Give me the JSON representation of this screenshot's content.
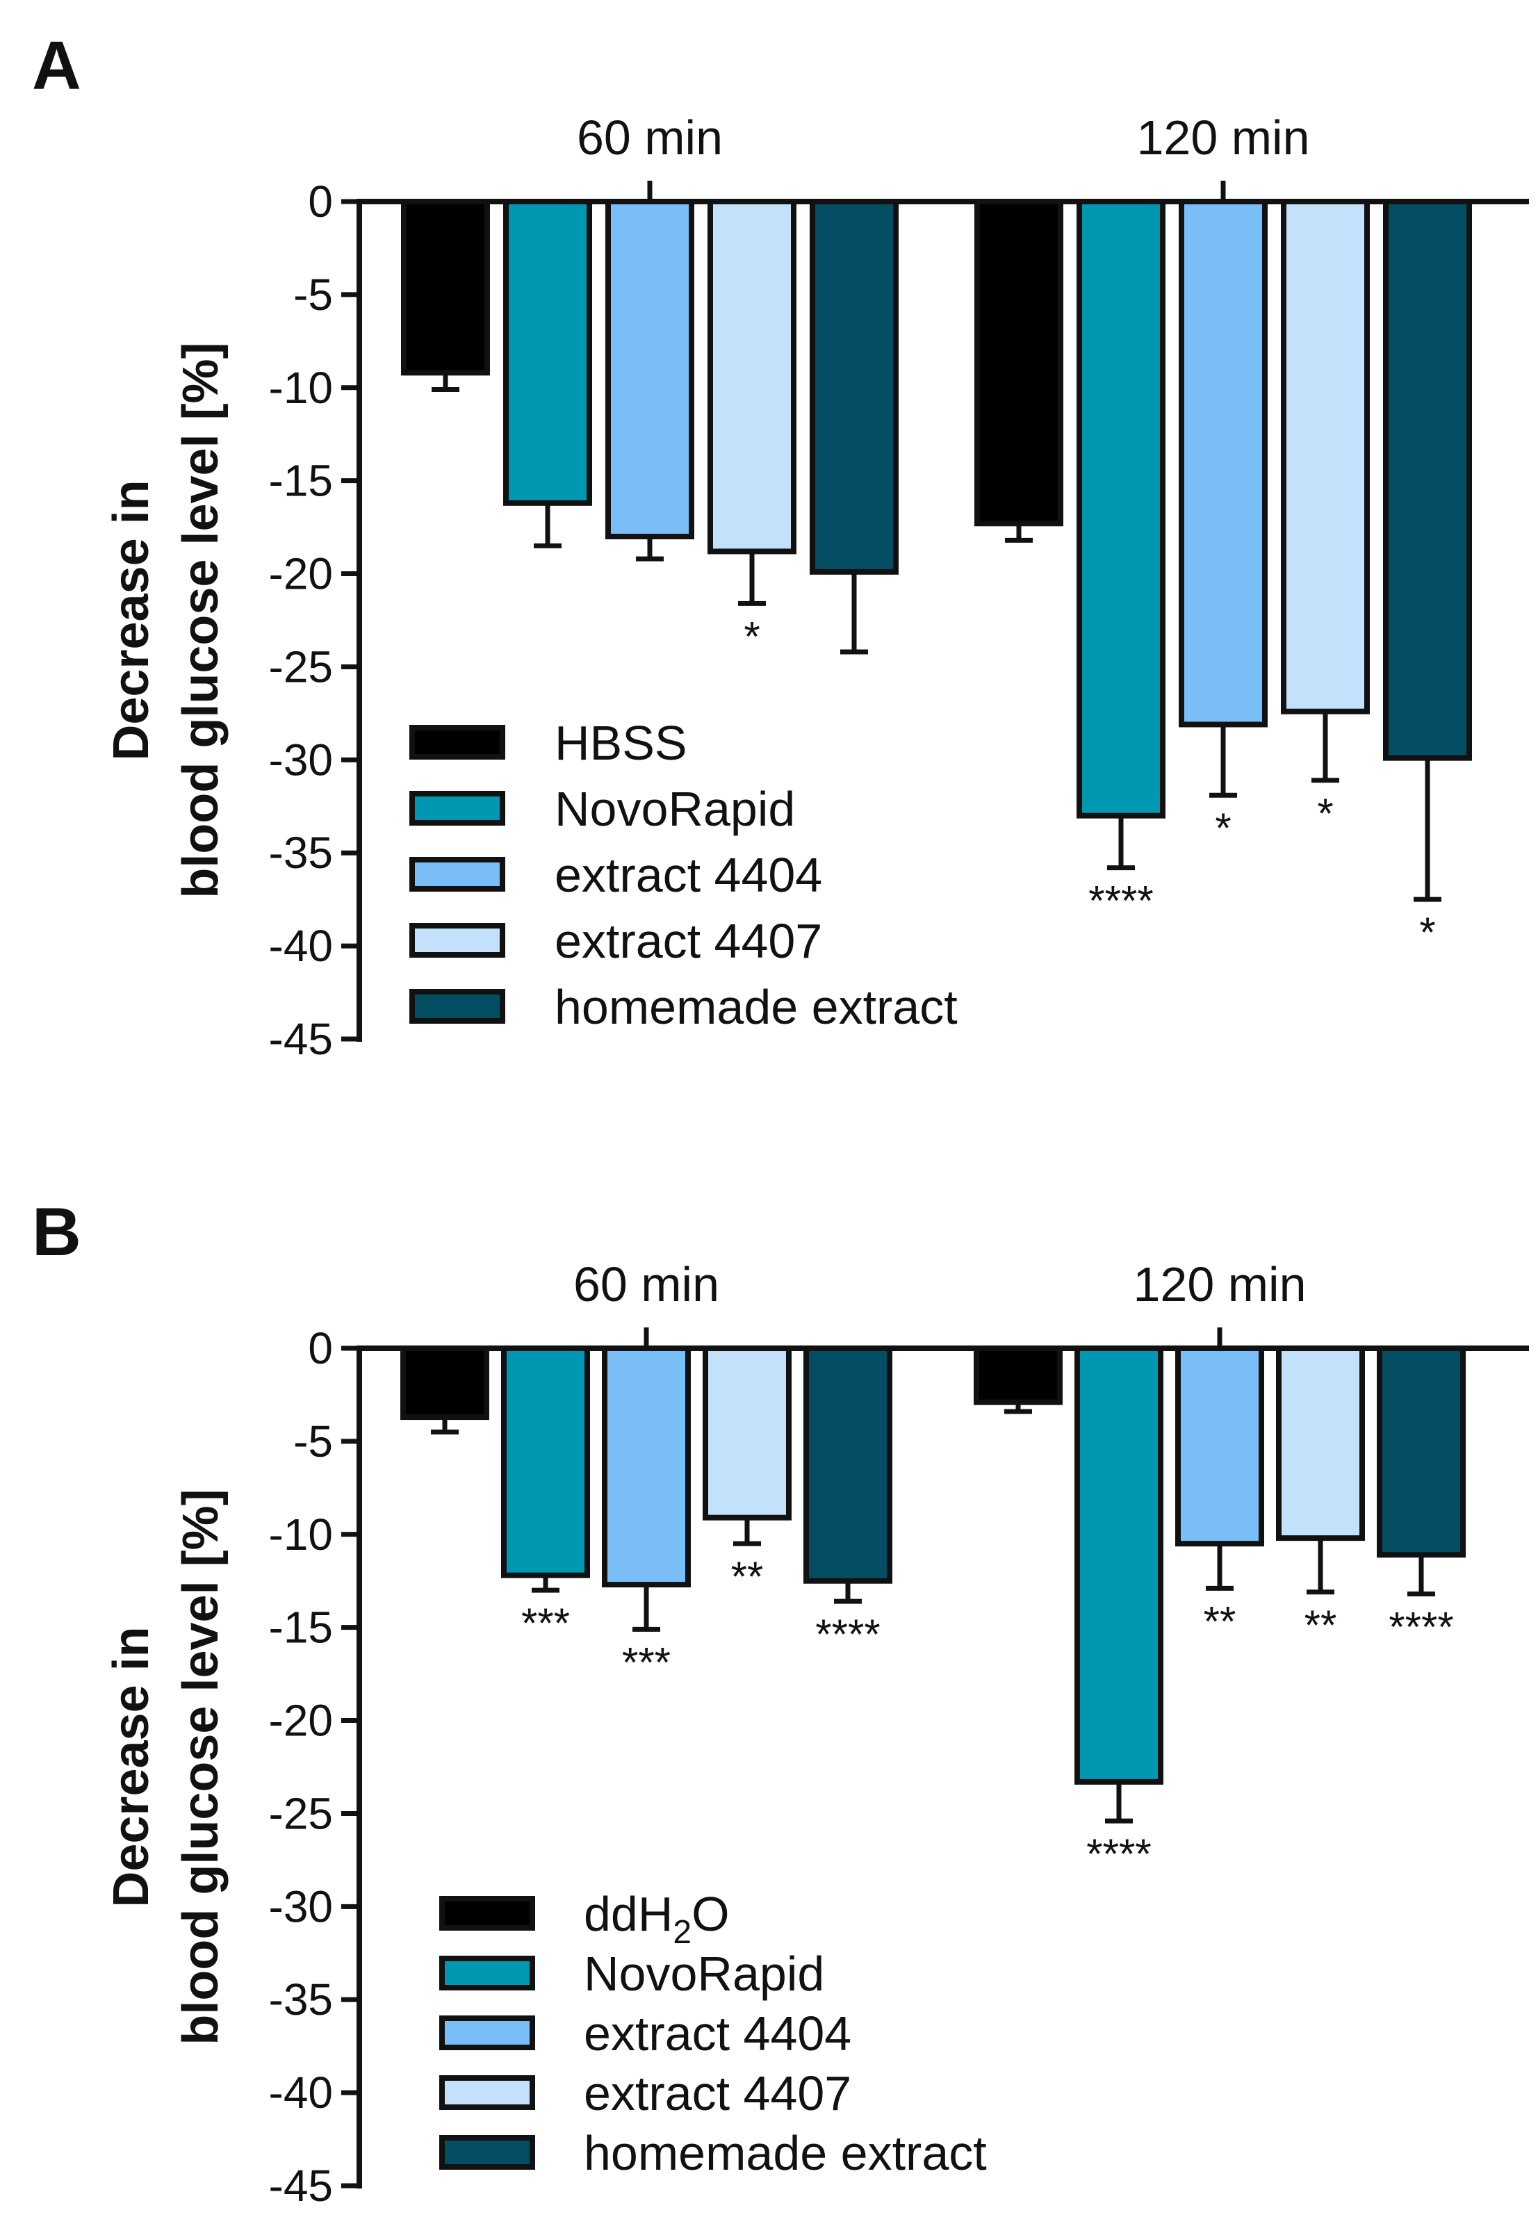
{
  "chart_data": [
    {
      "panel": "A",
      "type": "bar",
      "ylabel_line1": "Decrease in",
      "ylabel_line2": "blood glucose level [%]",
      "ylim": [
        -45,
        0
      ],
      "yticks": [
        0,
        -5,
        -10,
        -15,
        -20,
        -25,
        -30,
        -35,
        -40,
        -45
      ],
      "tick_labels": [
        "0",
        "-5",
        "-10",
        "-15",
        "-20",
        "-25",
        "-30",
        "-35",
        "-40",
        "-45"
      ],
      "categories": [
        "60 min",
        "120 min"
      ],
      "legend_position": "bottom-left",
      "series": [
        {
          "name": "HBSS",
          "color": "#000000",
          "values": [
            -9.2,
            -17.3
          ],
          "errors": [
            0.9,
            0.9
          ],
          "significance": [
            "",
            ""
          ]
        },
        {
          "name": "NovoRapid",
          "color": "#0097b2",
          "values": [
            -16.2,
            -33.0
          ],
          "errors": [
            2.3,
            2.8
          ],
          "significance": [
            "",
            "****"
          ]
        },
        {
          "name": "extract 4404",
          "color": "#7abef8",
          "values": [
            -18.0,
            -28.1
          ],
          "errors": [
            1.2,
            3.8
          ],
          "significance": [
            "",
            "*"
          ]
        },
        {
          "name": "extract 4407",
          "color": "#c3e1fa",
          "values": [
            -18.8,
            -27.4
          ],
          "errors": [
            2.8,
            3.7
          ],
          "significance": [
            "*",
            "*"
          ]
        },
        {
          "name": "homemade extract",
          "color": "#034e63",
          "values": [
            -19.9,
            -29.9
          ],
          "errors": [
            4.3,
            7.6
          ],
          "significance": [
            "",
            "*"
          ]
        }
      ]
    },
    {
      "panel": "B",
      "type": "bar",
      "ylabel_line1": "Decrease in",
      "ylabel_line2": "blood glucose level [%]",
      "ylim": [
        -45,
        0
      ],
      "yticks": [
        0,
        -5,
        -10,
        -15,
        -20,
        -25,
        -30,
        -35,
        -40,
        -45
      ],
      "tick_labels": [
        "0",
        "-5",
        "-10",
        "-15",
        "-20",
        "-25",
        "-30",
        "-35",
        "-40",
        "-45"
      ],
      "categories": [
        "60 min",
        "120 min"
      ],
      "legend_position": "bottom-left",
      "series": [
        {
          "name": "ddH2O",
          "legend_base": "ddH",
          "legend_sub": "2",
          "legend_tail": "O",
          "color": "#000000",
          "values": [
            -3.7,
            -2.9
          ],
          "errors": [
            0.8,
            0.5
          ],
          "significance": [
            "",
            ""
          ]
        },
        {
          "name": "NovoRapid",
          "color": "#0097b2",
          "values": [
            -12.2,
            -23.3
          ],
          "errors": [
            0.8,
            2.1
          ],
          "significance": [
            "***",
            "****"
          ]
        },
        {
          "name": "extract 4404",
          "color": "#7abef8",
          "values": [
            -12.7,
            -10.5
          ],
          "errors": [
            2.4,
            2.4
          ],
          "significance": [
            "***",
            "**"
          ]
        },
        {
          "name": "extract 4407",
          "color": "#c3e1fa",
          "values": [
            -9.1,
            -10.2
          ],
          "errors": [
            1.4,
            2.9
          ],
          "significance": [
            "**",
            "**"
          ]
        },
        {
          "name": "homemade extract",
          "color": "#034e63",
          "values": [
            -12.5,
            -11.1
          ],
          "errors": [
            1.1,
            2.1
          ],
          "significance": [
            "****",
            "****"
          ]
        }
      ]
    }
  ]
}
